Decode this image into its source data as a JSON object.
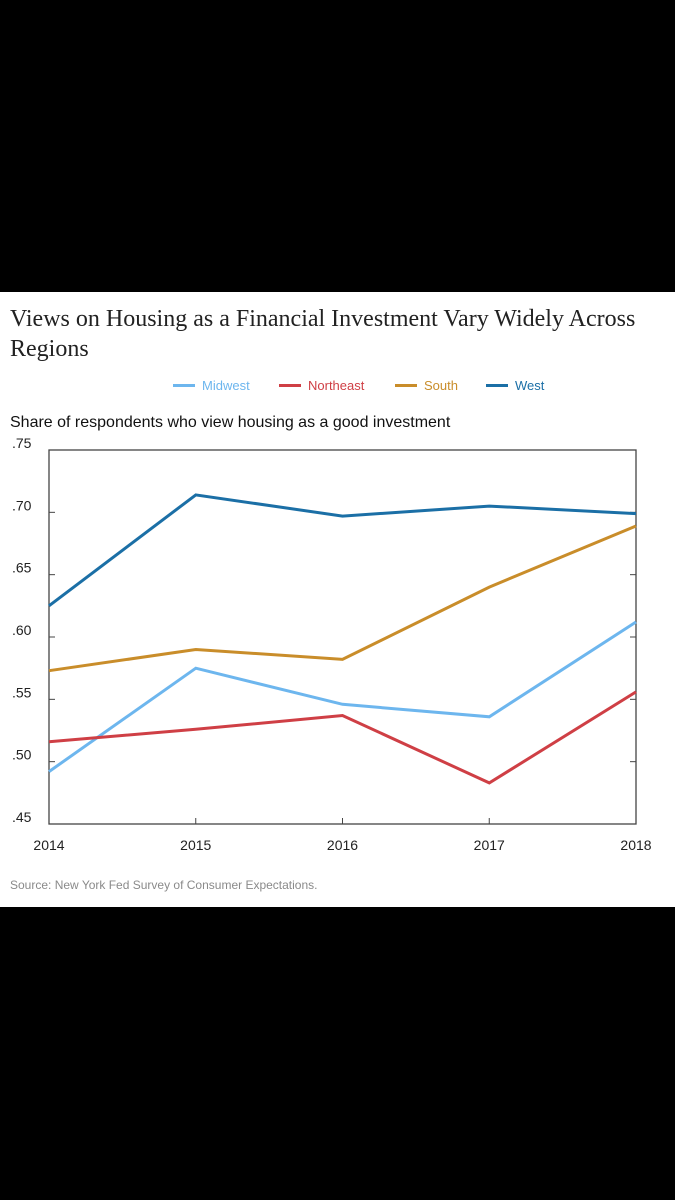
{
  "chart_data": {
    "type": "line",
    "title": "Views on Housing as a Financial Investment Vary Widely Across  Regions",
    "subtitle": "Share of  respondents who view housing as a good investment",
    "source": "Source: New York Fed Survey of Consumer Expectations.",
    "x": [
      "2014",
      "2015",
      "2016",
      "2017",
      "2018"
    ],
    "y_ticks": [
      ".75",
      ".70",
      ".65",
      ".60",
      ".55",
      ".50",
      ".45"
    ],
    "ylim": [
      0.45,
      0.75
    ],
    "grid": false,
    "legend_position": "top",
    "series": [
      {
        "name": "Midwest",
        "color": "#6db6ee",
        "values": [
          0.492,
          0.575,
          0.546,
          0.536,
          0.612
        ]
      },
      {
        "name": "Northeast",
        "color": "#cf3f45",
        "values": [
          0.516,
          0.526,
          0.537,
          0.483,
          0.556
        ]
      },
      {
        "name": "South",
        "color": "#c98d2a",
        "values": [
          0.573,
          0.59,
          0.582,
          0.64,
          0.689
        ]
      },
      {
        "name": "West",
        "color": "#1b6fa6",
        "values": [
          0.625,
          0.714,
          0.697,
          0.705,
          0.699
        ]
      }
    ]
  }
}
